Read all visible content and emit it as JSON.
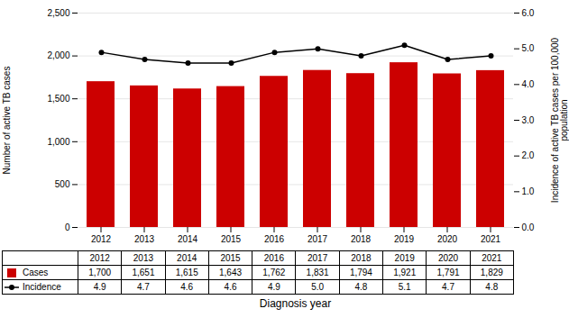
{
  "chart_data": {
    "type": "bar",
    "categories": [
      "2012",
      "2013",
      "2014",
      "2015",
      "2016",
      "2017",
      "2018",
      "2019",
      "2020",
      "2021"
    ],
    "series": [
      {
        "name": "Cases",
        "type": "bar",
        "color": "#cc0000",
        "values": [
          1700,
          1651,
          1615,
          1643,
          1762,
          1831,
          1794,
          1921,
          1791,
          1829
        ],
        "value_labels": [
          "1,700",
          "1,651",
          "1,615",
          "1,643",
          "1,762",
          "1,831",
          "1,794",
          "1,921",
          "1,791",
          "1,829"
        ]
      },
      {
        "name": "Incidence",
        "type": "line",
        "axis": "y2",
        "color": "#000000",
        "marker": "circle",
        "values": [
          4.9,
          4.7,
          4.6,
          4.6,
          4.9,
          5.0,
          4.8,
          5.1,
          4.7,
          4.8
        ],
        "value_labels": [
          "4.9",
          "4.7",
          "4.6",
          "4.6",
          "4.9",
          "5.0",
          "4.8",
          "5.1",
          "4.7",
          "4.8"
        ]
      }
    ],
    "xlabel": "Diagnosis year",
    "ylabel": "Number of active TB cases",
    "y2label": "Incidence of active TB cases per 100,000\npopulation",
    "ylim": [
      0,
      2500
    ],
    "yticks": [
      0,
      500,
      {
        "value": 1000,
        "label": "1,000"
      },
      {
        "value": 1500,
        "label": "1,500"
      },
      {
        "value": 2000,
        "label": "2,000"
      },
      {
        "value": 2500,
        "label": "2,500"
      }
    ],
    "y2lim": [
      0.0,
      6.0
    ],
    "y2ticks": [
      {
        "value": 0,
        "label": "0.0"
      },
      {
        "value": 1,
        "label": "1.0"
      },
      {
        "value": 2,
        "label": "2.0"
      },
      {
        "value": 3,
        "label": "3.0"
      },
      {
        "value": 4,
        "label": "4.0"
      },
      {
        "value": 5,
        "label": "5.0"
      },
      {
        "value": 6,
        "label": "6.0"
      }
    ],
    "grid": true,
    "data_labels": true,
    "legend": "bottom"
  }
}
